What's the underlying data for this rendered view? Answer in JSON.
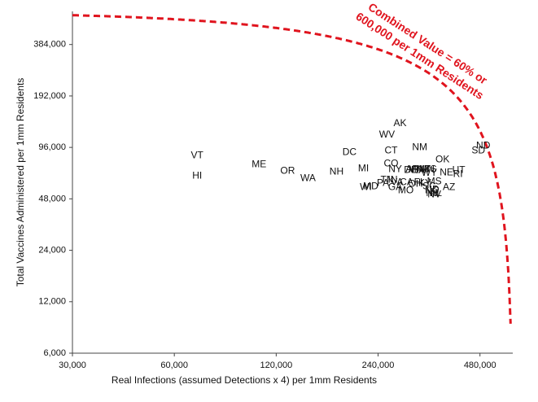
{
  "chart_data": {
    "type": "scatter",
    "annotation": [
      "Combined Value = 60% or",
      "600,000 per 1mm Residents"
    ],
    "x_label": "Real Infections (assumed Detections x 4) per 1mm Residents",
    "y_label": "Total Vaccines Administered per 1mm Residents",
    "xscale": "log",
    "yscale": "log",
    "xlim": [
      30000,
      600000
    ],
    "ylim": [
      6000,
      600000
    ],
    "xticks": [
      {
        "value": 30000,
        "label": "30,000"
      },
      {
        "value": 60000,
        "label": "60,000"
      },
      {
        "value": 120000,
        "label": "120,000"
      },
      {
        "value": 240000,
        "label": "240,000"
      },
      {
        "value": 480000,
        "label": "480,000"
      }
    ],
    "yticks": [
      {
        "value": 6000,
        "label": "6,000"
      },
      {
        "value": 12000,
        "label": "12,000"
      },
      {
        "value": 24000,
        "label": "24,000"
      },
      {
        "value": 48000,
        "label": "48,000"
      },
      {
        "value": 96000,
        "label": "96,000"
      },
      {
        "value": 192000,
        "label": "192,000"
      },
      {
        "value": 384000,
        "label": "384,000"
      }
    ],
    "curve_color": "#e0141e",
    "labels": [
      "VT",
      "HI",
      "ME",
      "OR",
      "WA",
      "NH",
      "DC",
      "MI",
      "WI",
      "MD",
      "PA",
      "TN",
      "IN",
      "NY",
      "CO",
      "CT",
      "WV",
      "AK",
      "GA",
      "MO",
      "VA",
      "CA",
      "DE",
      "AR",
      "OH",
      "FL",
      "NM",
      "MT",
      "MN",
      "KS",
      "MS",
      "NJ",
      "AL",
      "NC",
      "NV",
      "OK",
      "NE",
      "AZ",
      "RI",
      "UT",
      "SD",
      "ND",
      "KY",
      "SC",
      "ID",
      "IA",
      "WY",
      "MA"
    ],
    "x": [
      70080,
      70080,
      106800,
      129700,
      149000,
      180900,
      197600,
      217200,
      220800,
      228300,
      248100,
      255000,
      265200,
      269700,
      262200,
      262200,
      255000,
      278700,
      269700,
      289800,
      273000,
      291300,
      299700,
      303000,
      309600,
      318600,
      318600,
      327300,
      334800,
      342300,
      351900,
      346200,
      355800,
      346200,
      351900,
      372000,
      382200,
      388800,
      413100,
      415500,
      474600,
      490800,
      330000,
      340000,
      351900,
      320000,
      340000,
      310000
    ],
    "y": [
      86000,
      65200,
      76200,
      69700,
      63100,
      69000,
      89900,
      72100,
      55900,
      56500,
      59100,
      61700,
      61700,
      71300,
      77100,
      91900,
      113300,
      132100,
      55900,
      53500,
      59700,
      59700,
      70500,
      71300,
      58400,
      59700,
      96000,
      71300,
      71300,
      71300,
      60400,
      51700,
      51700,
      53500,
      50600,
      81400,
      68200,
      55900,
      66700,
      70500,
      91900,
      98100,
      59100,
      56500,
      54100,
      70000,
      68000,
      71000
    ]
  }
}
